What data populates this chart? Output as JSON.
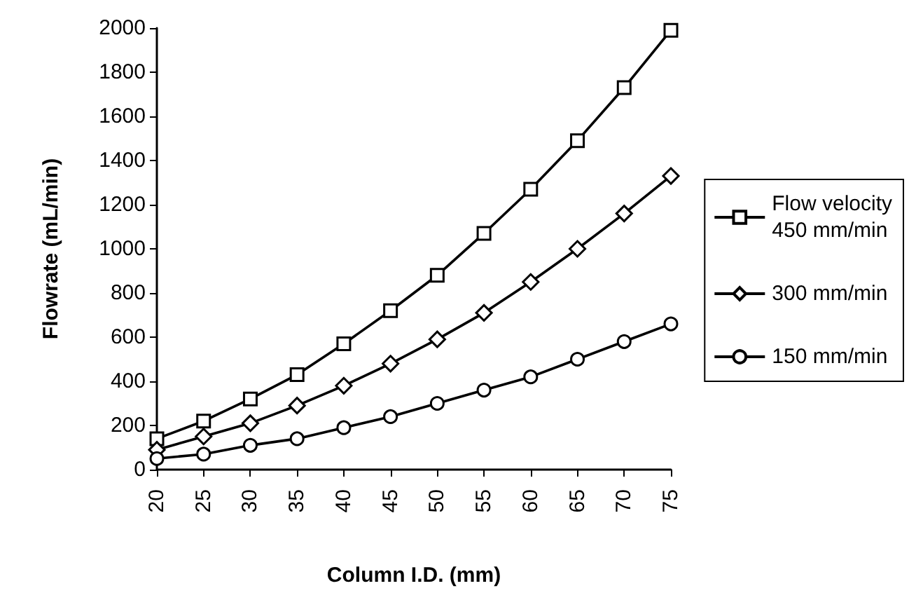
{
  "chart_data": {
    "type": "line",
    "xlabel": "Column I.D. (mm)",
    "ylabel": "Flowrate (mL/min)",
    "categories": [
      "20",
      "25",
      "30",
      "35",
      "40",
      "45",
      "50",
      "55",
      "60",
      "65",
      "70",
      "75"
    ],
    "series": [
      {
        "name": "Flow velocity\n450 mm/min",
        "color": "#000000",
        "marker": "square",
        "values": [
          140,
          220,
          320,
          430,
          570,
          720,
          880,
          1070,
          1270,
          1490,
          1730,
          1990
        ]
      },
      {
        "name": "300 mm/min",
        "color": "#000000",
        "marker": "diamond",
        "values": [
          90,
          150,
          210,
          290,
          380,
          480,
          590,
          710,
          850,
          1000,
          1160,
          1330
        ]
      },
      {
        "name": "150 mm/min",
        "color": "#000000",
        "marker": "circle",
        "values": [
          50,
          70,
          110,
          140,
          190,
          240,
          300,
          360,
          420,
          500,
          580,
          660
        ]
      }
    ],
    "ylim": [
      0,
      2000
    ],
    "yticks": [
      0,
      200,
      400,
      600,
      800,
      1000,
      1200,
      1400,
      1600,
      1800,
      2000
    ],
    "grid": false,
    "legend": "right",
    "line_style": "solid"
  }
}
